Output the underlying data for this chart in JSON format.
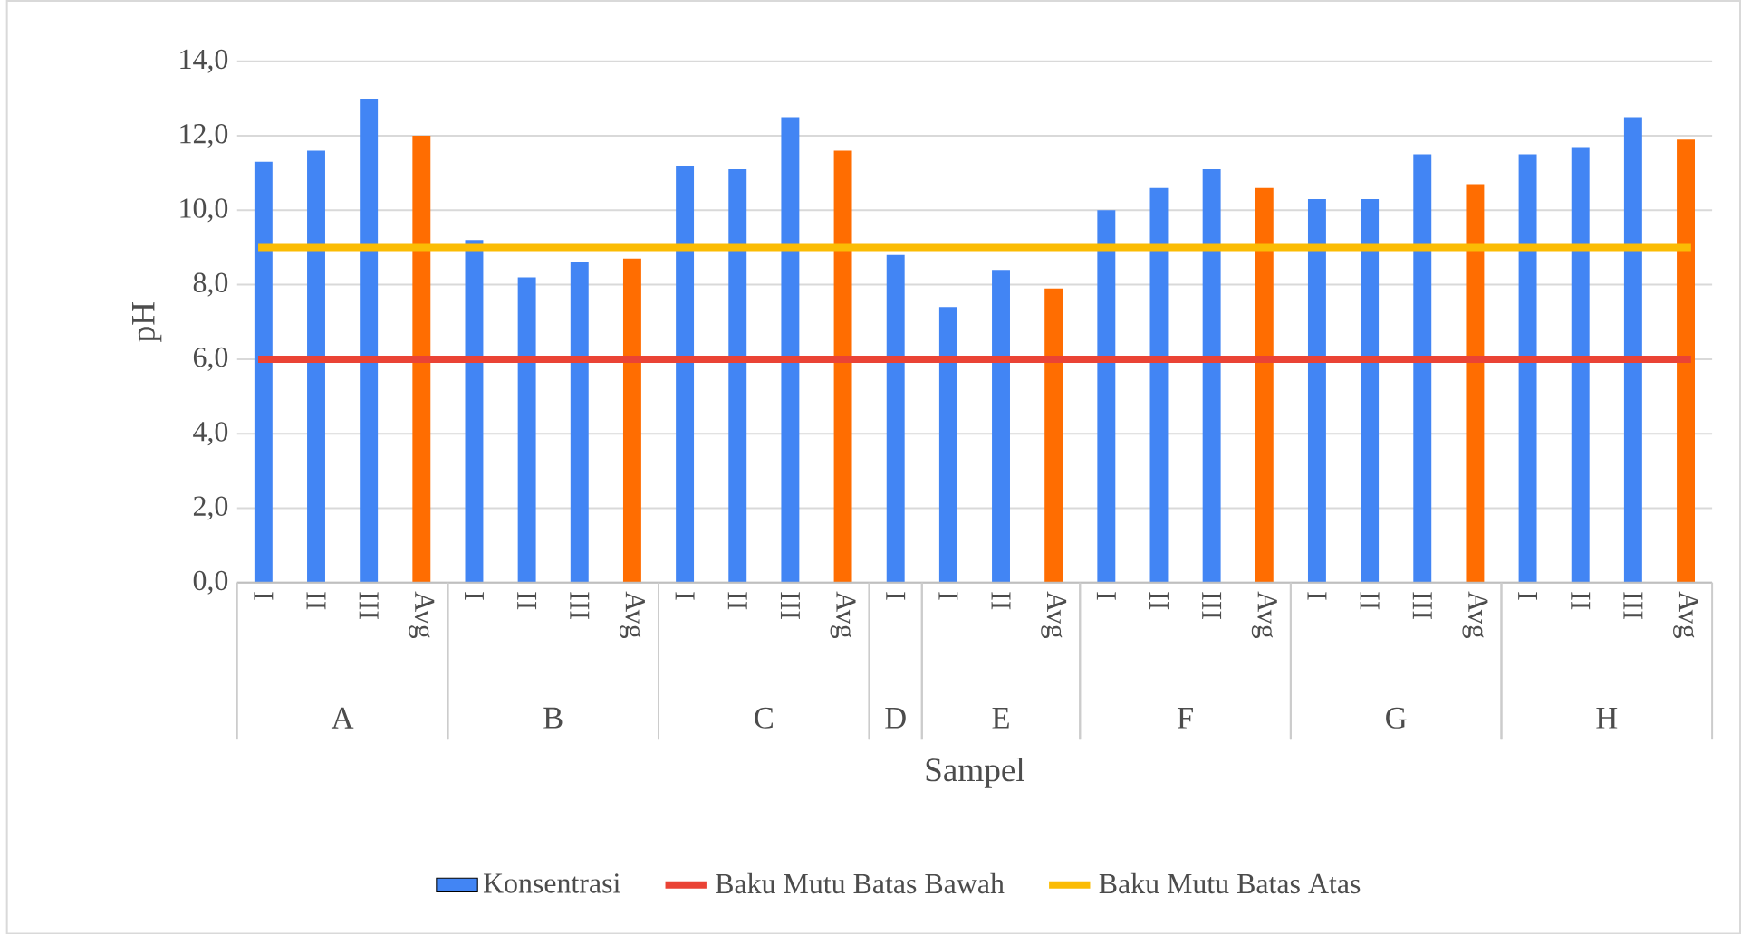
{
  "chart_data": {
    "type": "bar",
    "xlabel": "Sampel",
    "ylabel": "pH",
    "categories": [
      "I",
      "II",
      "III",
      "Avg",
      "I",
      "II",
      "III",
      "Avg",
      "I",
      "II",
      "III",
      "Avg",
      "I",
      "I",
      "II",
      "Avg",
      "I",
      "II",
      "III",
      "Avg",
      "I",
      "II",
      "III",
      "Avg",
      "I",
      "II",
      "III",
      "Avg"
    ],
    "annotations": [
      "A",
      "B",
      "C",
      "D",
      "E",
      "F",
      "G",
      "H"
    ],
    "series": [
      {
        "name": "Konsentrasi",
        "color": "#4285f4",
        "colors": [
          "#4285f4",
          "#4285f4",
          "#4285f4",
          "#ff6d01",
          "#4285f4",
          "#4285f4",
          "#4285f4",
          "#ff6d01",
          "#4285f4",
          "#4285f4",
          "#4285f4",
          "#ff6d01",
          "#4285f4",
          "#4285f4",
          "#4285f4",
          "#ff6d01",
          "#4285f4",
          "#4285f4",
          "#4285f4",
          "#ff6d01",
          "#4285f4",
          "#4285f4",
          "#4285f4",
          "#ff6d01",
          "#4285f4",
          "#4285f4",
          "#4285f4",
          "#ff6d01"
        ],
        "values": [
          11.3,
          11.6,
          13.0,
          12.0,
          9.2,
          8.2,
          8.6,
          8.7,
          11.2,
          11.1,
          12.5,
          11.6,
          8.8,
          7.4,
          8.4,
          7.9,
          10.0,
          10.6,
          11.1,
          10.6,
          10.3,
          10.3,
          11.5,
          10.7,
          11.5,
          11.7,
          12.5,
          11.9
        ]
      }
    ],
    "ref_lines": [
      {
        "axis": "y",
        "value": 6,
        "label": "Baku Mutu Batas Bawah",
        "color": "#ea4335"
      },
      {
        "axis": "y",
        "value": 9,
        "label": "Baku Mutu Batas Atas",
        "color": "#fbbc04"
      }
    ],
    "ylim": [
      0,
      14
    ],
    "yticks": [
      {
        "value": 0,
        "label": "0,0"
      },
      {
        "value": 2,
        "label": "2,0"
      },
      {
        "value": 4,
        "label": "4,0"
      },
      {
        "value": 6,
        "label": "6,0"
      },
      {
        "value": 8,
        "label": "8,0"
      },
      {
        "value": 10,
        "label": "10,0"
      },
      {
        "value": 12,
        "label": "12,0"
      },
      {
        "value": 14,
        "label": "14,0"
      }
    ],
    "grid": "y",
    "legend": "bottom"
  }
}
